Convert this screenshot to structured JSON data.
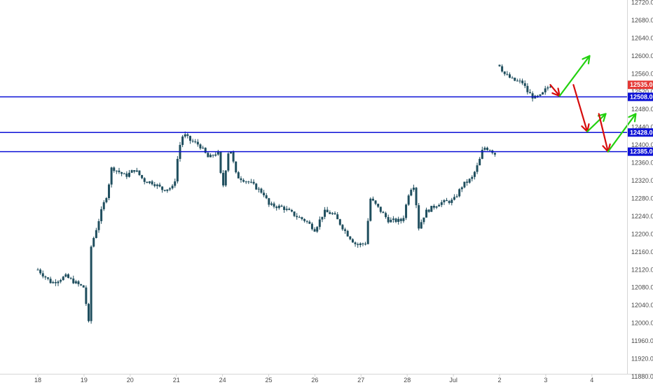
{
  "colors": {
    "candle": "#1f4e5e",
    "level_line": "#0c11d6",
    "price_label": "#e53935",
    "arrow_up": "#22d10f",
    "arrow_down": "#d60c0c",
    "axis_text": "#4a4a4a",
    "axis_line": "#d5d5d5"
  },
  "chart_data": {
    "type": "candlestick",
    "y_axis": {
      "min": 11880,
      "max": 12720,
      "step": 40,
      "tick_labels": [
        "11880.0",
        "11920.0",
        "11960.0",
        "12000.0",
        "12040.0",
        "12080.0",
        "12120.0",
        "12160.0",
        "12200.0",
        "12240.0",
        "12280.0",
        "12320.0",
        "12360.0",
        "12400.0",
        "12440.0",
        "12480.0",
        "12520.0",
        "12560.0",
        "12600.0",
        "12640.0",
        "12680.0",
        "12720.0"
      ]
    },
    "x_axis": {
      "tick_labels": [
        "18",
        "19",
        "20",
        "21",
        "24",
        "25",
        "26",
        "27",
        "28",
        "Jul",
        "2",
        "3",
        "4"
      ]
    },
    "levels": [
      {
        "value": 12508.0,
        "label": "12508.0"
      },
      {
        "value": 12428.0,
        "label": "12428.0"
      },
      {
        "value": 12385.0,
        "label": "12385.0"
      }
    ],
    "last_price": {
      "value": 12535.0,
      "label": "12535.0"
    },
    "path": [
      [
        0,
        12120
      ],
      [
        0.3,
        12090
      ],
      [
        0.6,
        12105
      ],
      [
        0.9,
        12085
      ],
      [
        1.0,
        12080
      ],
      [
        1.1,
        12000
      ],
      [
        1.15,
        12170
      ],
      [
        1.4,
        12260
      ],
      [
        1.5,
        12290
      ],
      [
        1.6,
        12350
      ],
      [
        1.9,
        12330
      ],
      [
        2.1,
        12345
      ],
      [
        2.3,
        12320
      ],
      [
        2.5,
        12315
      ],
      [
        2.7,
        12300
      ],
      [
        2.95,
        12305
      ],
      [
        3.05,
        12390
      ],
      [
        3.15,
        12425
      ],
      [
        3.3,
        12410
      ],
      [
        3.5,
        12400
      ],
      [
        3.7,
        12370
      ],
      [
        3.9,
        12385
      ],
      [
        4.0,
        12300
      ],
      [
        4.15,
        12400
      ],
      [
        4.3,
        12330
      ],
      [
        4.6,
        12315
      ],
      [
        4.9,
        12290
      ],
      [
        5.0,
        12265
      ],
      [
        5.3,
        12260
      ],
      [
        5.6,
        12240
      ],
      [
        5.8,
        12230
      ],
      [
        6.0,
        12210
      ],
      [
        6.2,
        12250
      ],
      [
        6.4,
        12245
      ],
      [
        6.7,
        12200
      ],
      [
        6.9,
        12175
      ],
      [
        7.1,
        12180
      ],
      [
        7.2,
        12280
      ],
      [
        7.4,
        12255
      ],
      [
        7.6,
        12230
      ],
      [
        7.9,
        12230
      ],
      [
        8.05,
        12300
      ],
      [
        8.15,
        12310
      ],
      [
        8.25,
        12215
      ],
      [
        8.4,
        12250
      ],
      [
        8.7,
        12270
      ],
      [
        9.0,
        12275
      ],
      [
        9.2,
        12310
      ],
      [
        9.4,
        12325
      ],
      [
        9.55,
        12360
      ],
      [
        9.65,
        12395
      ],
      [
        9.8,
        12390
      ],
      [
        9.9,
        12380
      ],
      [
        9.95,
        12395
      ]
    ],
    "path2": [
      [
        10.0,
        12580
      ],
      [
        10.1,
        12560
      ],
      [
        10.3,
        12545
      ],
      [
        10.5,
        12540
      ],
      [
        10.6,
        12520
      ],
      [
        10.75,
        12505
      ],
      [
        10.9,
        12510
      ],
      [
        11.0,
        12525
      ],
      [
        11.1,
        12535
      ]
    ],
    "arrows": [
      {
        "dir": "down",
        "from": [
          11.1,
          12535
        ],
        "to": [
          11.3,
          12510
        ]
      },
      {
        "dir": "up",
        "from": [
          11.3,
          12510
        ],
        "to": [
          11.95,
          12600
        ]
      },
      {
        "dir": "down",
        "from": [
          11.6,
          12535
        ],
        "to": [
          11.9,
          12430
        ]
      },
      {
        "dir": "up",
        "from": [
          11.9,
          12430
        ],
        "to": [
          12.3,
          12470
        ]
      },
      {
        "dir": "down",
        "from": [
          12.15,
          12470
        ],
        "to": [
          12.35,
          12385
        ]
      },
      {
        "dir": "up",
        "from": [
          12.35,
          12385
        ],
        "to": [
          12.95,
          12470
        ]
      }
    ]
  }
}
